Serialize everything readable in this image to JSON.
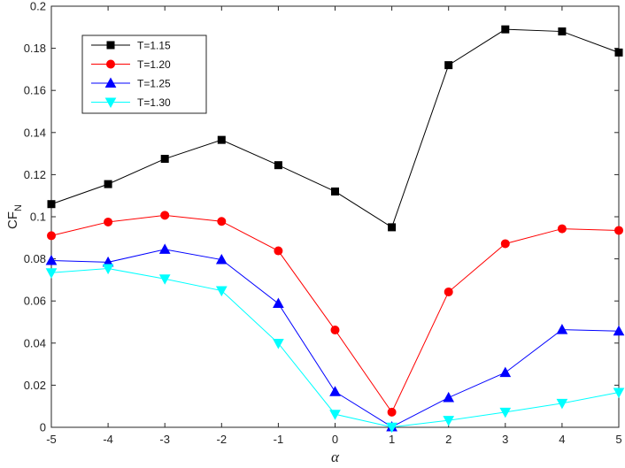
{
  "chart_data": {
    "type": "line",
    "xlabel": "α",
    "ylabel": "CF",
    "ylabel_subscript": "N",
    "x": [
      -5,
      -4,
      -3,
      -2,
      -1,
      0,
      1,
      2,
      3,
      4,
      5
    ],
    "xlim": [
      -5,
      5
    ],
    "ylim": [
      0,
      0.2
    ],
    "xticks": [
      "-5",
      "-4",
      "-3",
      "-2",
      "-1",
      "0",
      "1",
      "2",
      "3",
      "4",
      "5"
    ],
    "yticks": [
      "0",
      "0.02",
      "0.04",
      "0.06",
      "0.08",
      "0.1",
      "0.12",
      "0.14",
      "0.16",
      "0.18",
      "0.2"
    ],
    "grid": false,
    "legend_position": "top-left",
    "series": [
      {
        "name": "T=1.15",
        "color": "#000000",
        "marker": "square",
        "values": [
          0.106,
          0.1155,
          0.1275,
          0.1365,
          0.1245,
          0.112,
          0.095,
          0.172,
          0.189,
          0.188,
          0.178
        ]
      },
      {
        "name": "T=1.20",
        "color": "#ff0000",
        "marker": "circle",
        "values": [
          0.091,
          0.0975,
          0.1007,
          0.0978,
          0.0838,
          0.0462,
          0.0072,
          0.0643,
          0.0872,
          0.0943,
          0.0935
        ]
      },
      {
        "name": "T=1.25",
        "color": "#0000ff",
        "marker": "triangle-up",
        "values": [
          0.0792,
          0.0784,
          0.0845,
          0.0796,
          0.0588,
          0.0169,
          0.0002,
          0.0141,
          0.026,
          0.0464,
          0.0457
        ]
      },
      {
        "name": "T=1.30",
        "color": "#00ffff",
        "marker": "triangle-down",
        "values": [
          0.0734,
          0.0754,
          0.0705,
          0.0649,
          0.0399,
          0.0062,
          0.0001,
          0.0033,
          0.0072,
          0.0114,
          0.0166
        ]
      }
    ]
  }
}
